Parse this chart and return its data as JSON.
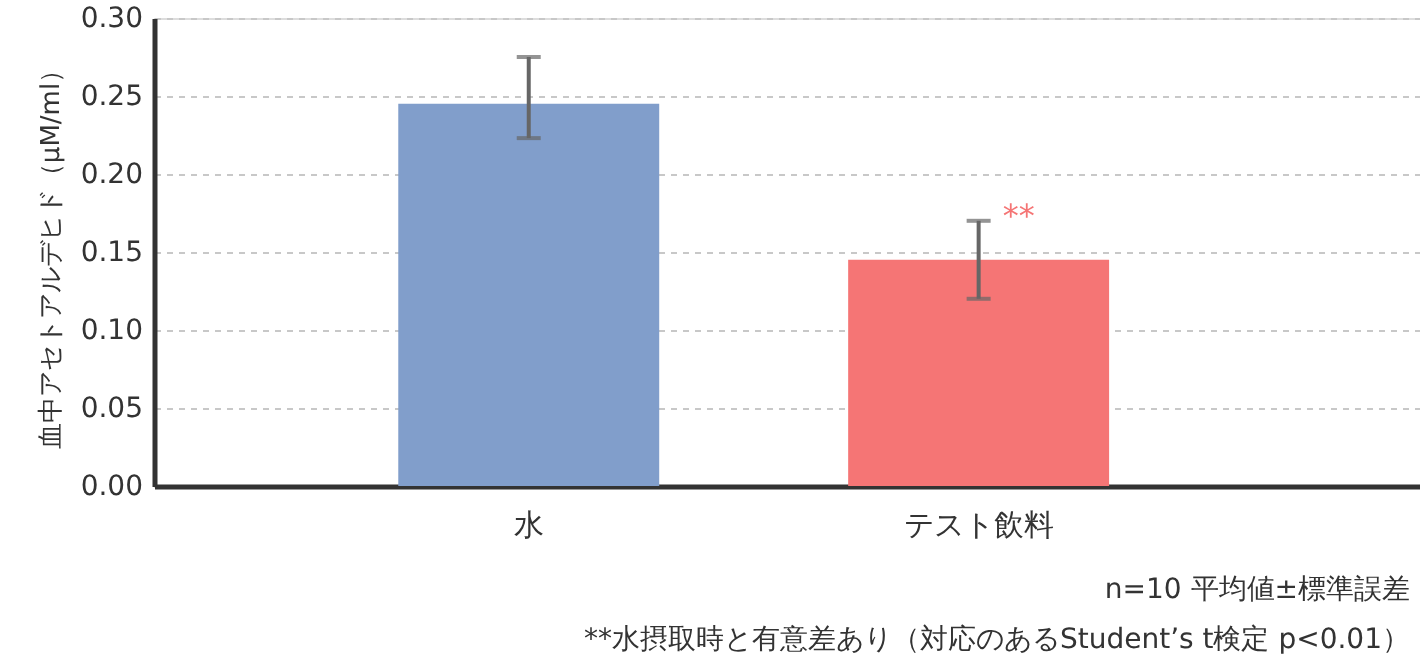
{
  "chart_data": {
    "type": "bar",
    "ylabel": "血中アセトアルデヒド（μM/ml）",
    "categories": [
      "水",
      "テスト飲料"
    ],
    "values": [
      0.245,
      0.145
    ],
    "colors": [
      "#819ecb",
      "#f57575"
    ],
    "errors": [
      [
        0.223,
        0.275
      ],
      [
        0.12,
        0.17
      ]
    ],
    "ylim": [
      0,
      0.3
    ],
    "yticks": [
      {
        "value": 0,
        "label": "0.00"
      },
      {
        "value": 0.05,
        "label": "0.05"
      },
      {
        "value": 0.1,
        "label": "0.10"
      },
      {
        "value": 0.15,
        "label": "0.15"
      },
      {
        "value": 0.2,
        "label": "0.20"
      },
      {
        "value": 0.25,
        "label": "0.25"
      },
      {
        "value": 0.3,
        "label": "0.30"
      }
    ],
    "grid": "y",
    "annotations": [
      {
        "text": "**",
        "x": "テスト飲料",
        "y": 0.17
      },
      "n=10  平均値±標準誤差",
      "**水摂取時と有意差あり（対応のあるStudent’s t検定  p<0.01）"
    ]
  }
}
